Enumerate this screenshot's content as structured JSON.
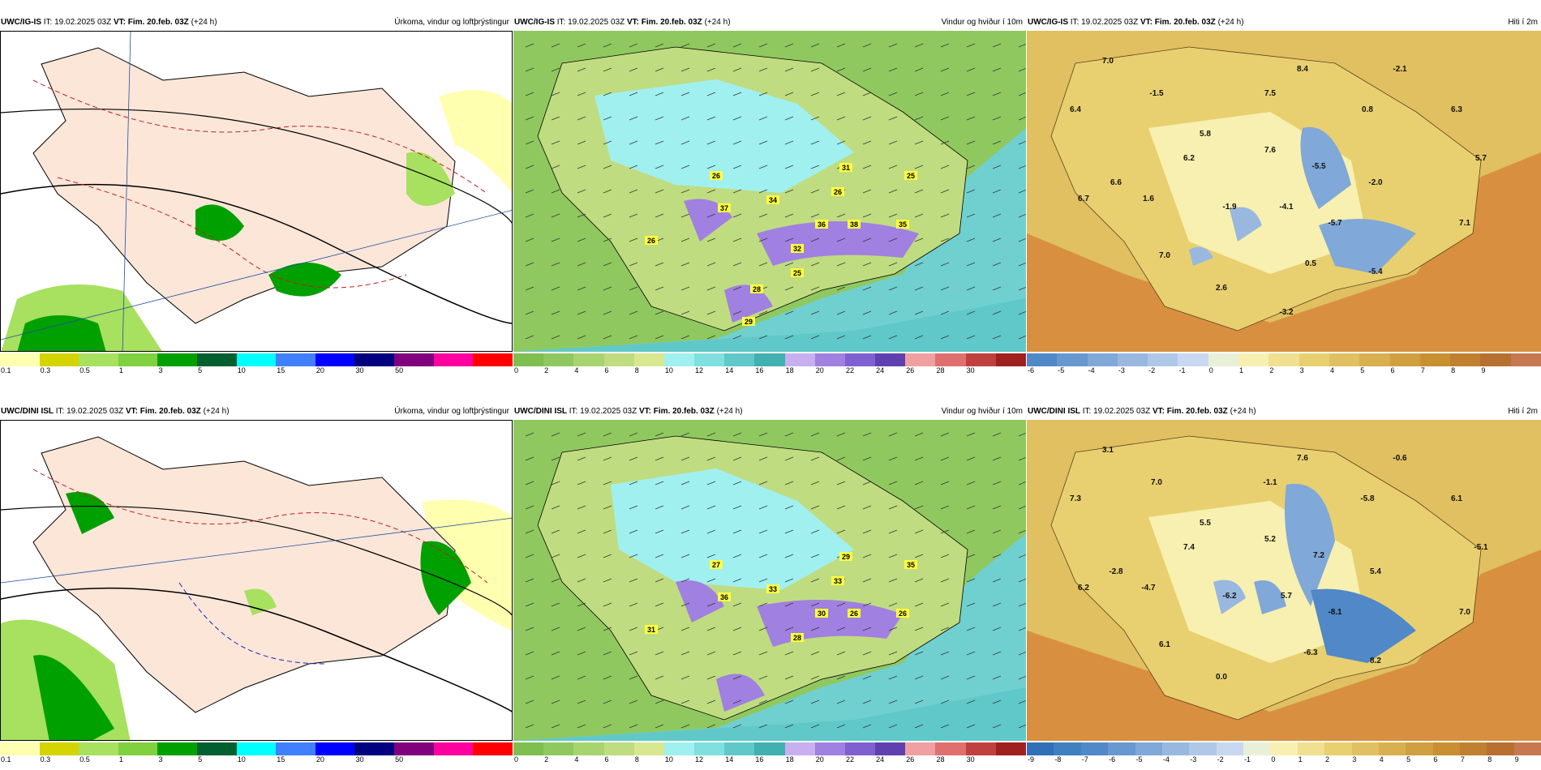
{
  "panels": [
    {
      "model": "UWC/IG-IS",
      "it_label": "IT:",
      "it_value": "19.02.2025 03Z",
      "vt_label": "VT:",
      "vt_value": "Fim. 20.feb. 03Z",
      "lead": "(+24 h)",
      "title": "Úrkoma, vindur og loftþrýstingur",
      "ticks": [
        "0.1",
        "0.3",
        "0.5",
        "1",
        "3",
        "5",
        "10",
        "15",
        "20",
        "30",
        "50"
      ],
      "colors": [
        "#ffffb0",
        "#d4d400",
        "#a8e060",
        "#80d040",
        "#00a000",
        "#006030",
        "#00ffff",
        "#4080ff",
        "#0000ff",
        "#000080",
        "#800080",
        "#ff00a0",
        "#ff0000"
      ]
    },
    {
      "model": "UWC/IG-IS",
      "it_label": "IT:",
      "it_value": "19.02.2025 03Z",
      "vt_label": "VT:",
      "vt_value": "Fim. 20.feb. 03Z",
      "lead": "(+24 h)",
      "title": "Vindur og hviður í 10m",
      "ticks": [
        "0",
        "2",
        "4",
        "6",
        "8",
        "10",
        "12",
        "14",
        "16",
        "18",
        "20",
        "22",
        "24",
        "26",
        "28",
        "30"
      ],
      "gust_labels": [
        "26",
        "37",
        "34",
        "26",
        "31",
        "25",
        "26",
        "36",
        "38",
        "35",
        "32",
        "25",
        "28",
        "29"
      ],
      "colors": [
        "#7fbf50",
        "#90c860",
        "#a8d470",
        "#c0dc80",
        "#d8e890",
        "#a0f0f0",
        "#80e0e0",
        "#60c8c8",
        "#40b0b0",
        "#c8b0f0",
        "#a080e0",
        "#8060d0",
        "#6040b0",
        "#f0a0a0",
        "#e07070",
        "#c04040",
        "#a02020"
      ]
    },
    {
      "model": "UWC/IG-IS",
      "it_label": "IT:",
      "it_value": "19.02.2025 03Z",
      "vt_label": "VT:",
      "vt_value": "Fim. 20.feb. 03Z",
      "lead": "(+24 h)",
      "title": "Hiti í 2m",
      "ticks": [
        "-6",
        "-5",
        "-4",
        "-3",
        "-2",
        "-1",
        "0",
        "1",
        "2",
        "3",
        "4",
        "5",
        "6",
        "7",
        "8",
        "9"
      ],
      "temp_labels": [
        "7.0",
        "-1.5",
        "8.4",
        "-2.1",
        "7.5",
        "6.4",
        "0.8",
        "6.3",
        "5.8",
        "6.2",
        "7.6",
        "-5.5",
        "5.7",
        "6.6",
        "-2.0",
        "6.7",
        "1.6",
        "-1.9",
        "-4.1",
        "-5.7",
        "7.1",
        "7.0",
        "0.5",
        "-5.4",
        "2.6",
        "-3.2"
      ],
      "colors": [
        "#5088c8",
        "#6898d0",
        "#80a8d8",
        "#98b8e0",
        "#b0c8e8",
        "#c8d8f0",
        "#e8f0d8",
        "#f8f0b0",
        "#f0e090",
        "#e8d070",
        "#e0c060",
        "#d8b050",
        "#d0a040",
        "#c89030",
        "#c08030",
        "#b87030",
        "#c87850"
      ]
    },
    {
      "model": "UWC/DINI ISL",
      "it_label": "IT:",
      "it_value": "19.02.2025 03Z",
      "vt_label": "VT:",
      "vt_value": "Fim. 20.feb. 03Z",
      "lead": "(+24 h)",
      "title": "Úrkoma, vindur og loftþrýstingur",
      "ticks": [
        "0.1",
        "0.3",
        "0.5",
        "1",
        "3",
        "5",
        "10",
        "15",
        "20",
        "30",
        "50"
      ],
      "colors": [
        "#ffffb0",
        "#d4d400",
        "#a8e060",
        "#80d040",
        "#00a000",
        "#006030",
        "#00ffff",
        "#4080ff",
        "#0000ff",
        "#000080",
        "#800080",
        "#ff00a0",
        "#ff0000"
      ]
    },
    {
      "model": "UWC/DINI ISL",
      "it_label": "IT:",
      "it_value": "19.02.2025 03Z",
      "vt_label": "VT:",
      "vt_value": "Fim. 20.feb. 03Z",
      "lead": "(+24 h)",
      "title": "Vindur og hviður í 10m",
      "ticks": [
        "0",
        "2",
        "4",
        "6",
        "8",
        "10",
        "12",
        "14",
        "16",
        "18",
        "20",
        "22",
        "24",
        "26",
        "28",
        "30"
      ],
      "gust_labels": [
        "27",
        "36",
        "33",
        "33",
        "29",
        "35",
        "31",
        "30",
        "26",
        "26",
        "28"
      ],
      "colors": [
        "#7fbf50",
        "#90c860",
        "#a8d470",
        "#c0dc80",
        "#d8e890",
        "#a0f0f0",
        "#80e0e0",
        "#60c8c8",
        "#40b0b0",
        "#c8b0f0",
        "#a080e0",
        "#8060d0",
        "#6040b0",
        "#f0a0a0",
        "#e07070",
        "#c04040",
        "#a02020"
      ]
    },
    {
      "model": "UWC/DINI ISL",
      "it_label": "IT:",
      "it_value": "19.02.2025 03Z",
      "vt_label": "VT:",
      "vt_value": "Fim. 20.feb. 03Z",
      "lead": "(+24 h)",
      "title": "Hiti í 2m",
      "ticks": [
        "-9",
        "-8",
        "-7",
        "-6",
        "-5",
        "-4",
        "-3",
        "-2",
        "-1",
        "0",
        "1",
        "2",
        "3",
        "4",
        "5",
        "6",
        "7",
        "8",
        "9"
      ],
      "temp_labels": [
        "3.1",
        "7.0",
        "7.6",
        "-0.6",
        "-1.1",
        "7.3",
        "-5.8",
        "6.1",
        "5.5",
        "7.4",
        "5.2",
        "7.2",
        "-5.1",
        "-2.8",
        "5.4",
        "6.2",
        "-4.7",
        "-6.2",
        "5.7",
        "-8.1",
        "7.0",
        "6.1",
        "-6.3",
        "8.2",
        "0.0"
      ],
      "colors": [
        "#3070b8",
        "#4080c0",
        "#5088c8",
        "#6898d0",
        "#80a8d8",
        "#98b8e0",
        "#b0c8e8",
        "#c8d8f0",
        "#e8f0d8",
        "#f8f0b0",
        "#f0e090",
        "#e8d070",
        "#e0c060",
        "#d8b050",
        "#d0a040",
        "#c89030",
        "#c08030",
        "#b87030",
        "#c87850"
      ]
    }
  ]
}
